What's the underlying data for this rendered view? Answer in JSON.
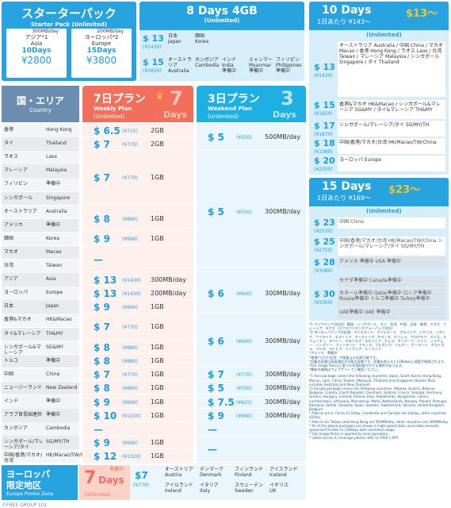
{
  "starter": {
    "title": "スターターパック",
    "subtitle": "Starter Pack (Unlimited)",
    "col1": {
      "top": "300MB/day",
      "jp": "アジア*1",
      "en": "Asia",
      "days": "10Days",
      "price": "¥2800"
    },
    "col2": {
      "top": "200MB/day",
      "jp": "ヨーロッパ*2",
      "en": "Europe",
      "days": "15Days",
      "price": "¥3800"
    }
  },
  "eight_days": {
    "title": "8 Days 4GB",
    "subtitle": "(Unlimited)",
    "rows": [
      {
        "price": "$ 13",
        "yen": "(¥1430)",
        "countries": [
          "日本\nJapan",
          "韓国\nKorea"
        ]
      },
      {
        "price": "$ 15",
        "yen": "(¥1650)",
        "countries": [
          "オーストラリア\nAustralia",
          "カンボジア\nCambodia",
          "インド\nIndia\n準備中",
          "ミャンマー\nMyanmar\n準備中",
          "フィリピン\nPhilippines\n準備中"
        ]
      }
    ]
  },
  "ten_days": {
    "title": "10 Days",
    "price_head": "$13〜",
    "subtitle": "1日あたり ¥143〜",
    "unlimited": "(Unlimited)",
    "rows": [
      {
        "price": "$ 13",
        "yen": "(¥1430)",
        "text": "オーストラリア Australia / 中国 China / マカオ Macao / 香港 Hong Kong / ラオス Laos / 台湾 Taiwan / マレーシア Malaysia / シンガポール Singapore / タイ Thailand"
      },
      {
        "price": "$ 15",
        "yen": "(¥1650)",
        "text": "香港&マカオ HK&Macao / シンガポール&マレーシア SG&MY / タイ&マレーシア TH&MY"
      },
      {
        "price": "$ 17",
        "yen": "(¥1870)",
        "text": "シンガポール/マレーシア/タイ SG/MY/TH"
      },
      {
        "price": "$ 18",
        "yen": "(¥1980)",
        "text": "中国/香港/マカオ/台湾 HK/Macao/TW/China"
      },
      {
        "price": "$ 20",
        "yen": "(¥2200)",
        "text": "ヨーロッパ Europe"
      }
    ]
  },
  "fifteen_days": {
    "title": "15 Days",
    "price_head": "$23〜",
    "subtitle": "1日あたり ¥169〜",
    "unlimited": "(Unlimited)",
    "rows": [
      {
        "price": "$ 23",
        "yen": "(¥2530)",
        "text": "中国 China"
      },
      {
        "price": "$ 25",
        "yen": "(¥2750)",
        "text": "中国/香港/マカオ/台湾 HK/Macao/TW/China   シンガポール/マレーシア/タイ SG/MY/TH"
      },
      {
        "price": "$ 28",
        "yen": "(¥3080)",
        "text": "アメリカ 準備中 USA 準備中"
      },
      {
        "price": "",
        "yen": "",
        "text": "カナダ準備中 Canada準備中"
      },
      {
        "price": "$ 30",
        "yen": "(¥3300)",
        "text": "カタール準備中 Qatar準備中   ロシア準備中 Russia準備中   トルコ準備中 Turkey準備中"
      },
      {
        "price": "",
        "yen": "",
        "text": "UAE準備中 UAE 準備中"
      }
    ]
  },
  "header": {
    "country_jp": "国・エリア",
    "country_en": "Country",
    "weekly_jp": "7日プラン",
    "weekly_en": "Weekly Plan",
    "weekly_unl": "(Unlimited)",
    "weekly_big": "7",
    "weekly_days": "Days",
    "weekend_jp": "3日プラン",
    "weekend_en": "Weekend Plan",
    "weekend_unl": "(Unlimited)",
    "weekend_big": "3",
    "weekend_days": "Days"
  },
  "rows": [
    {
      "jp": "香港",
      "en": "Hong Kong"
    },
    {
      "jp": "タイ",
      "en": "Thailand"
    },
    {
      "jp": "ラオス",
      "en": "Laos"
    },
    {
      "jp": "マレーシア",
      "en": "Malaysia"
    },
    {
      "jp": "フィリピン",
      "en": "準備中"
    },
    {
      "jp": "シンガポール",
      "en": "Singapore"
    },
    {
      "jp": "オーストラリア",
      "en": "Australia"
    },
    {
      "jp": "アメリカ",
      "en": "準備中"
    },
    {
      "jp": "韓国",
      "en": "Korea"
    },
    {
      "jp": "マカオ",
      "en": "Macao"
    },
    {
      "jp": "台湾",
      "en": "Taiwan"
    },
    {
      "jp": "アジア",
      "en": "Asia"
    },
    {
      "jp": "ヨーロッパ",
      "en": "Europe"
    },
    {
      "jp": "日本",
      "en": "Japan"
    },
    {
      "jp": "香港&マカオ",
      "en": "HK&Macao"
    },
    {
      "jp": "タイ&マレーシア",
      "en": "TH&MY"
    },
    {
      "jp": "シンガポール&マレーシア",
      "en": "SG&MY"
    },
    {
      "jp": "トルコ",
      "en": "準備中"
    },
    {
      "jp": "中国",
      "en": "China"
    },
    {
      "jp": "ニュージーランド",
      "en": "New Zealand"
    },
    {
      "jp": "インド",
      "en": "準備中"
    },
    {
      "jp": "アラブ首長国連邦",
      "en": "準備中"
    },
    {
      "jp": "カンボジア",
      "en": "Cambodia"
    },
    {
      "jp": "シンガポール/マレーシア/タイ",
      "en": "SG/MY/TH"
    },
    {
      "jp": "中国/香港/マカオ/台湾",
      "en": "HK/Macao/TW/China"
    }
  ],
  "weekly": [
    {
      "price": "$ 6.5",
      "yen": "(¥715)",
      "data": "2GB",
      "row": 0,
      "span": 1
    },
    {
      "price": "$ 7",
      "yen": "(¥770)",
      "data": "2GB",
      "row": 1,
      "span": 1
    },
    {
      "price": "$ 7",
      "yen": "(¥770)",
      "data": "1GB",
      "row": 2,
      "span": 4
    },
    {
      "price": "$ 8",
      "yen": "(¥880)",
      "data": "1GB",
      "row": 6,
      "span": 2
    },
    {
      "price": "$ 9",
      "yen": "(¥990)",
      "data": "1GB",
      "row": 8,
      "span": 1
    },
    {
      "price": "—",
      "yen": "",
      "data": "",
      "row": 9,
      "span": 2
    },
    {
      "price": "$ 13",
      "yen": "(¥1430)",
      "data": "300MB/day",
      "row": 11,
      "span": 1
    },
    {
      "price": "$ 13",
      "yen": "(¥1430)",
      "data": "200MB/day",
      "row": 12,
      "span": 1
    },
    {
      "price": "$ 9",
      "yen": "(¥990)",
      "data": "1GB",
      "row": 13,
      "span": 1
    },
    {
      "price": "$ 7",
      "yen": "(¥770)",
      "data": "1GB",
      "row": 14,
      "span": 2
    },
    {
      "price": "$ 8",
      "yen": "(¥880)",
      "data": "1GB",
      "row": 16,
      "span": 1
    },
    {
      "price": "$ 8",
      "yen": "(¥880)",
      "data": "1GB",
      "row": 17,
      "span": 1
    },
    {
      "price": "$ 7",
      "yen": "(¥770)",
      "data": "1GB",
      "row": 18,
      "span": 1
    },
    {
      "price": "$ 8",
      "yen": "(¥880)",
      "data": "1GB",
      "row": 19,
      "span": 1
    },
    {
      "price": "$ 9",
      "yen": "(¥990)",
      "data": "1GB",
      "row": 20,
      "span": 1
    },
    {
      "price": "$ 10",
      "yen": "(¥1100)",
      "data": "1GB",
      "row": 21,
      "span": 1
    },
    {
      "price": "—",
      "yen": "",
      "data": "",
      "row": 22,
      "span": 1
    },
    {
      "price": "$ 9",
      "yen": "(¥990)",
      "data": "1GB",
      "row": 23,
      "span": 1
    },
    {
      "price": "$ 12",
      "yen": "(¥1320)",
      "data": "1GB",
      "row": 24,
      "span": 1
    }
  ],
  "weekend": [
    {
      "price": "$ 5",
      "yen": "(¥550)",
      "data": "500MB/day",
      "row": 0,
      "span": 2
    },
    {
      "price": "$ 5",
      "yen": "(¥550)",
      "data": "300MB/day",
      "row": 2,
      "span": 9
    },
    {
      "price": "$ 6",
      "yen": "(¥660)",
      "data": "300MB/day",
      "row": 11,
      "span": 3
    },
    {
      "price": "$ 6",
      "yen": "(¥660)",
      "data": "300MB/day",
      "row": 14,
      "span": 4
    },
    {
      "price": "$ 7",
      "yen": "(¥770)",
      "data": "300MB/day",
      "row": 18,
      "span": 1
    },
    {
      "price": "$ 5",
      "yen": "(¥550)",
      "data": "300MB/day",
      "row": 19,
      "span": 1
    },
    {
      "price": "$ 7.5",
      "yen": "(¥825)",
      "data": "300MB/day",
      "row": 20,
      "span": 1
    },
    {
      "price": "$ 9",
      "yen": "(¥990)",
      "data": "300MB/day",
      "row": 21,
      "span": 1
    },
    {
      "price": "—",
      "yen": "",
      "data": "",
      "row": 22,
      "span": 1
    },
    {
      "price": "—",
      "yen": "",
      "data": "",
      "row": 23,
      "span": 2
    }
  ],
  "europe_promo": {
    "jp1": "ヨーロッパ",
    "jp2": "限定地区",
    "en": "Europe Promo Zone",
    "unl": "(Unlimited)",
    "big": "7",
    "days": "Days",
    "prep": "準備中",
    "price": "$7",
    "yen": "(¥770)",
    "countries": [
      "オーストリア\nAustria",
      "デンマーク\nDenmark",
      "フィンランド\nFinland",
      "アイスランド\nIceland",
      "アイルランド\nIreland",
      "イタリア\nItaly",
      "スウェーデン\nSweden",
      "イギリス\nUK"
    ]
  },
  "notes": {
    "jp": "*1 アジアパック対応国：韓国、シンガポール、タイ、台湾、中国、日本、香港、マカオ、マレーシア、ラオス（エクスペリエンスフォーパック対応）\n*2 ヨーロッパパック対応国：アイスランド、アイルランド、アルバニア、イギリス、イタリア、ウクライナ、エストニア、オーストリア、オランダ、ギリシャ、クロアチア、スイス、スウェーデン、スペイン、スロバキア、スロベニア、チェコ、デンマーク、ドイツ、ノルウェー、ハンガリー、フィンランド、フランス、ブルガリア、ベルギー、ポーランド、ポルトガル、マルタ、ラトビア、リトアニア、ルーマニア\n*アメリカ：準備中\n*香港/マカオ/台湾：中国本土も利用可能です。\n*記載の容量は高速通信が可能な容量です。容量を超えると128kbpsに速度が制限されます。\n*Fair Usage Policyに基づき利用制限がかかる場合があります。\n*最新の価格はウェブサイトでご確認ください。",
    "en": "*1 Asia package covers the following countries: Japan, South Korea, Hong Kong, Macau, Laos, China, Taiwan, Malaysia, Thailand and Singapore (Starter Pack includes Australia and New Zealand)\n*2 Europe package covers the following countries: Albania, Austria, Belarus, Bulgaria, Croatia, Czech Republic, Denmark, Estonia, France, Georgia, Germany, Greece, Hungary, Iceland, Ireland, Italy, Kazakhstan, Kyrgyzstan, Latvia, Liechtenstein, Lithuania, Macedonia, Malta, Netherlands, Norway, Poland, Portugal, Romania, Serbia, Slovakia, Spain, Sweden, Switzerland, Ukraine, United Kingdom, Belgium\n* Add-on price: China $1.5/day, Cambodia and Canada are $3/day, other countries $2/day\n* Add-on for Taiwan and Hong Kong are 500MB/day, other countries are 300MB/day.\n* All of the above packages are shown in high-speed data; once data exceeds, speed will throttle to 128kbps with unlimited usage.\n* Fair Usage Policy is applied by local operators.\n* Latest prices & coverage please refer to FREE's APP."
  },
  "footer": "©FREE GROUP Ltd.",
  "colors": {
    "blue": "#27a3df",
    "salmon": "#f26f5c",
    "cyan": "#1fb0e3",
    "orange": "#f5a623",
    "gold": "#f3c623"
  }
}
